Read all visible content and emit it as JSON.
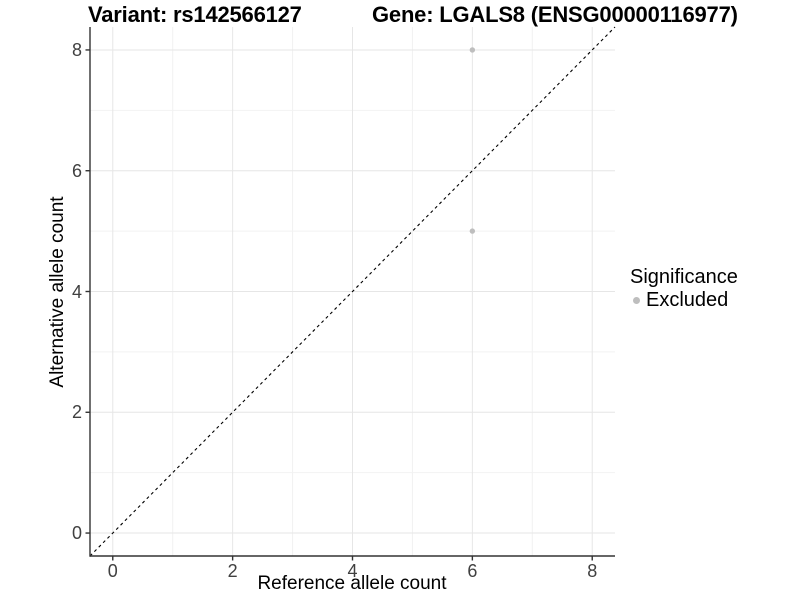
{
  "chart_data": {
    "type": "scatter",
    "title_left": "Variant: rs142566127",
    "title_right": "Gene: LGALS8 (ENSG00000116977)",
    "xlabel": "Reference allele count",
    "ylabel": "Alternative allele count",
    "xlim": [
      -0.38,
      8.38
    ],
    "ylim": [
      -0.38,
      8.38
    ],
    "x_ticks": [
      0,
      2,
      4,
      6,
      8
    ],
    "y_ticks": [
      0,
      2,
      4,
      6,
      8
    ],
    "x_minor_ticks": [
      1,
      3,
      5,
      7
    ],
    "y_minor_ticks": [
      1,
      3,
      5,
      7
    ],
    "grid": "major and minor gridlines on white background",
    "reference_line": {
      "type": "identity y=x",
      "style": "dashed",
      "color": "#000000"
    },
    "series": [
      {
        "name": "Excluded",
        "color": "#bebebe",
        "points": [
          {
            "x": 6,
            "y": 8
          },
          {
            "x": 6,
            "y": 5
          }
        ]
      }
    ],
    "legend": {
      "position": "right",
      "title": "Significance",
      "items": [
        {
          "label": "Excluded",
          "color": "#bebebe"
        }
      ]
    }
  },
  "colors": {
    "background": "#ffffff",
    "grid_major": "#e6e6e6",
    "grid_minor": "#f2f2f2",
    "axis_line": "#333333",
    "tick_label": "#404040",
    "text": "#000000"
  }
}
